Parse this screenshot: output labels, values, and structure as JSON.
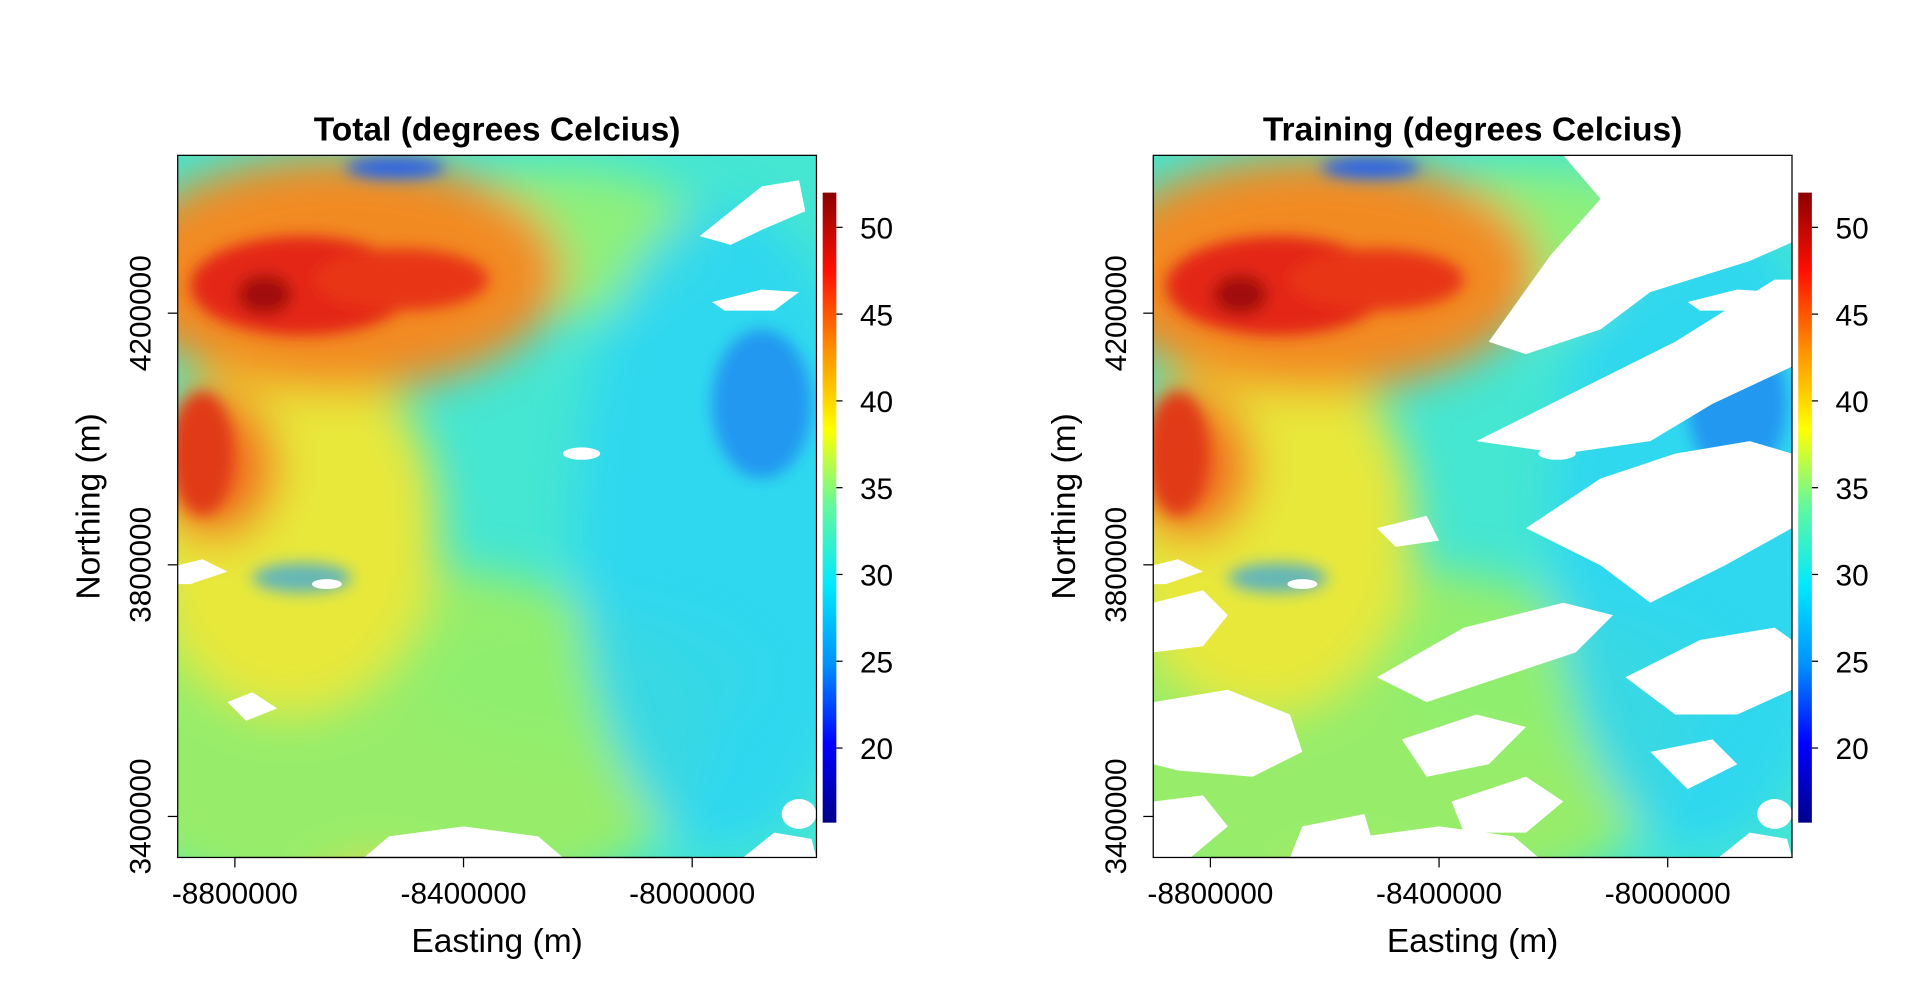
{
  "chart_data": [
    {
      "type": "raster",
      "title": "Total (degrees Celcius)",
      "xlabel": "Easting (m)",
      "ylabel": "Northing (m)",
      "xlim": [
        -8900000,
        -7782600
      ],
      "ylim": [
        3334800,
        4450900
      ],
      "xticks": [
        -8800000,
        -8400000,
        -8000000
      ],
      "yticks": [
        3400000,
        3800000,
        4200000
      ],
      "colorbar": {
        "lim": [
          15.7,
          52
        ],
        "ticks": [
          20,
          25,
          30,
          35,
          40,
          45,
          50
        ],
        "colors": [
          "#00008b",
          "#0000ff",
          "#0090ff",
          "#00e8ff",
          "#60f8a0",
          "#ffff00",
          "#ff9000",
          "#ff1000",
          "#8b0000"
        ]
      }
    },
    {
      "type": "raster",
      "title": "Training (degrees Celcius)",
      "xlabel": "Easting (m)",
      "ylabel": "Northing (m)",
      "xlim": [
        -8900000,
        -7782600
      ],
      "ylim": [
        3334800,
        4450900
      ],
      "xticks": [
        -8800000,
        -8400000,
        -8000000
      ],
      "yticks": [
        3400000,
        3800000,
        4200000
      ],
      "colorbar": {
        "lim": [
          15.7,
          52
        ],
        "ticks": [
          20,
          25,
          30,
          35,
          40,
          45,
          50
        ],
        "colors": [
          "#00008b",
          "#0000ff",
          "#0090ff",
          "#00e8ff",
          "#60f8a0",
          "#ffff00",
          "#ff9000",
          "#ff1000",
          "#8b0000"
        ]
      }
    }
  ]
}
